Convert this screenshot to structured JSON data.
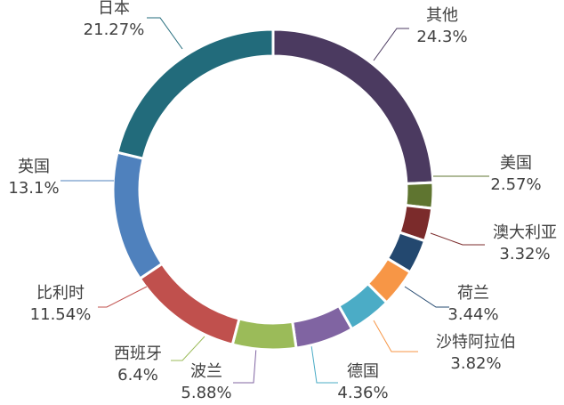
{
  "chart_data": {
    "type": "donut",
    "categories": [
      "其他",
      "美国",
      "澳大利亚",
      "荷兰",
      "沙特阿拉伯",
      "德国",
      "波兰",
      "西班牙",
      "比利时",
      "英国",
      "日本"
    ],
    "values": [
      24.3,
      2.57,
      3.32,
      3.44,
      3.82,
      4.36,
      5.88,
      6.4,
      11.54,
      13.1,
      21.27
    ],
    "value_labels": [
      "24.3%",
      "2.57%",
      "3.32%",
      "3.44%",
      "3.82%",
      "4.36%",
      "5.88%",
      "6.4%",
      "11.54%",
      "13.1%",
      "21.27%"
    ],
    "colors": [
      "#4b3a60",
      "#5f7530",
      "#7b2b2b",
      "#23486f",
      "#f79646",
      "#4bacc6",
      "#8064a2",
      "#9bbb59",
      "#c0504d",
      "#4f81bd",
      "#226b7b"
    ]
  }
}
